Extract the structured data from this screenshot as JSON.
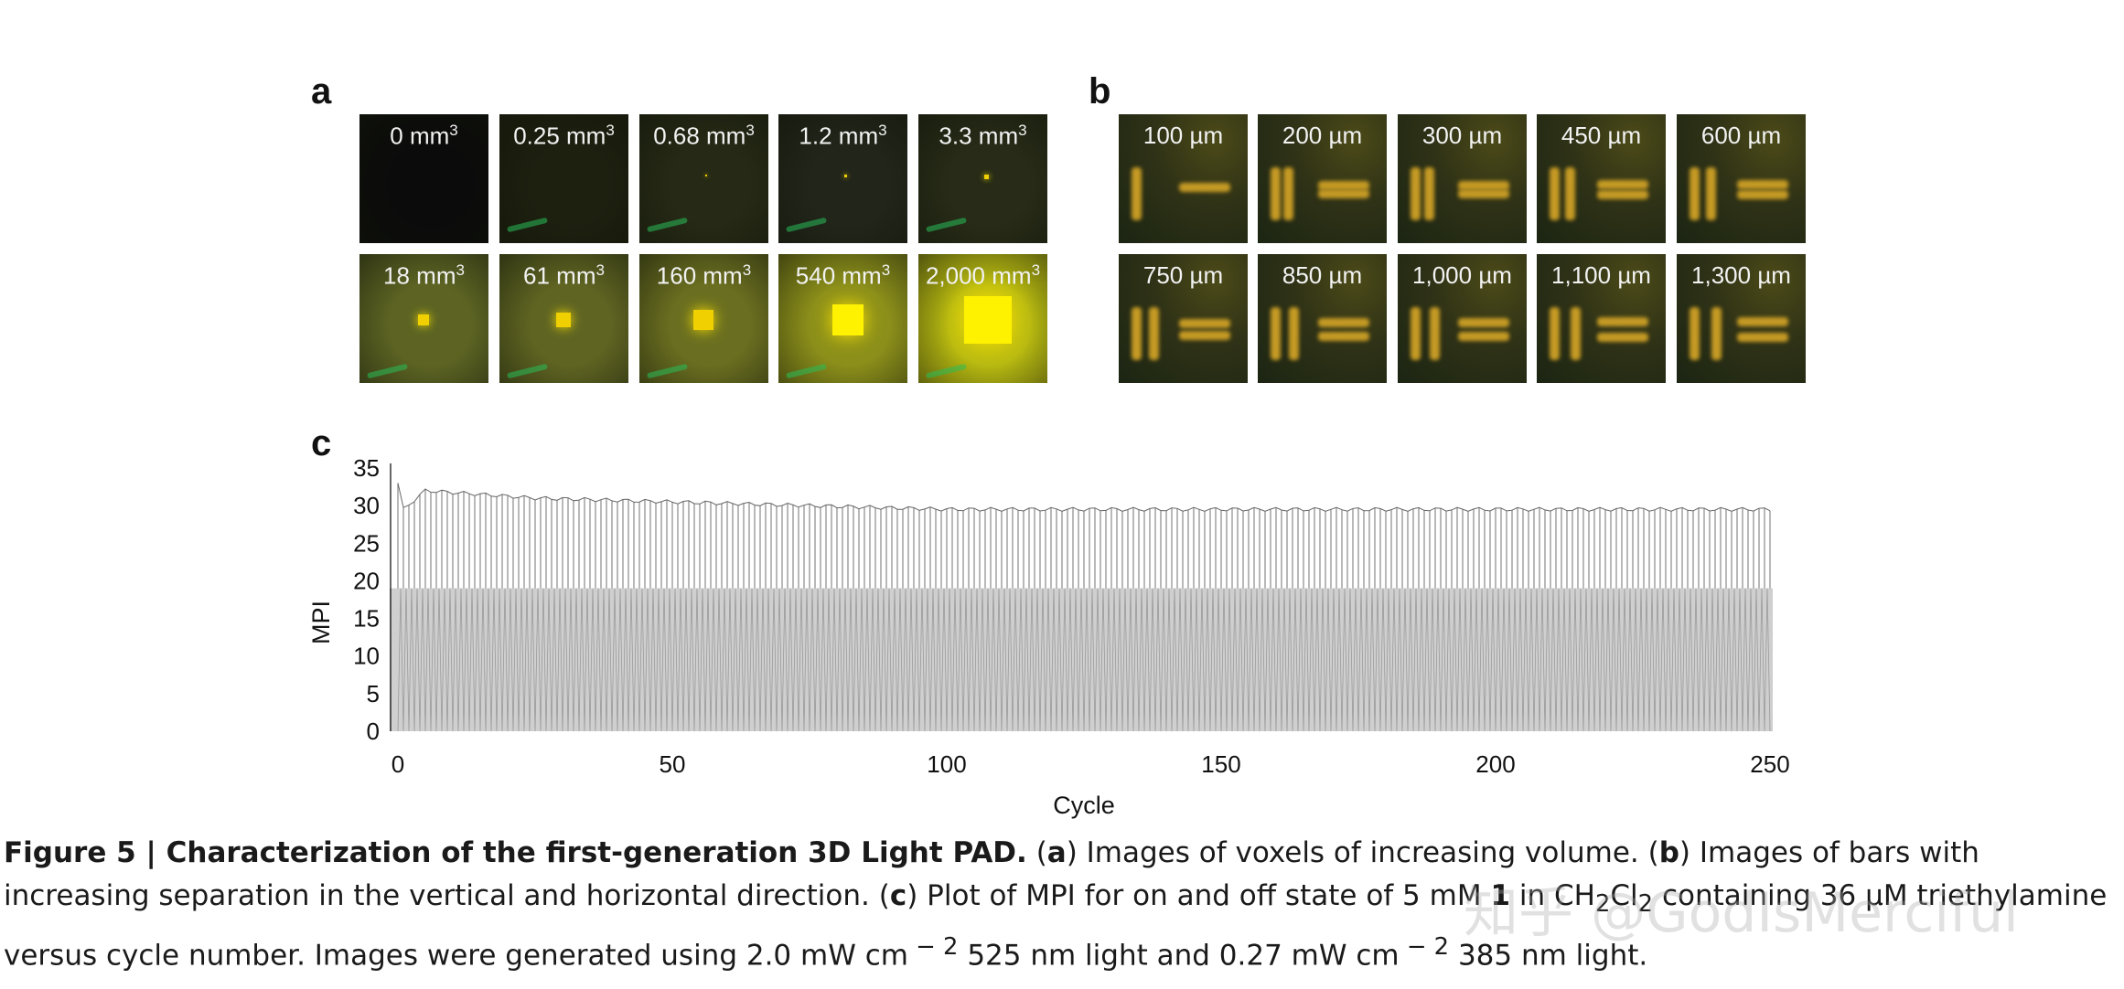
{
  "panels": {
    "a_letter": "a",
    "b_letter": "b",
    "c_letter": "c"
  },
  "panel_a": {
    "tiles": [
      {
        "value": "0 mm",
        "exp": "3"
      },
      {
        "value": "0.25 mm",
        "exp": "3"
      },
      {
        "value": "0.68 mm",
        "exp": "3"
      },
      {
        "value": "1.2 mm",
        "exp": "3"
      },
      {
        "value": "3.3 mm",
        "exp": "3"
      },
      {
        "value": "18 mm",
        "exp": "3"
      },
      {
        "value": "61 mm",
        "exp": "3"
      },
      {
        "value": "160 mm",
        "exp": "3"
      },
      {
        "value": "540 mm",
        "exp": "3"
      },
      {
        "value": "2,000 mm",
        "exp": "3"
      }
    ]
  },
  "panel_b": {
    "tiles": [
      "100 µm",
      "200 µm",
      "300 µm",
      "450 µm",
      "600 µm",
      "750 µm",
      "850 µm",
      "1,000 µm",
      "1,100 µm",
      "1,300 µm"
    ]
  },
  "chart_data": {
    "type": "line",
    "xlabel": "Cycle",
    "ylabel": "MPI",
    "xlim": [
      0,
      250
    ],
    "ylim": [
      0,
      35
    ],
    "xticks": [
      0,
      50,
      100,
      150,
      200,
      250
    ],
    "yticks": [
      0,
      5,
      10,
      15,
      20,
      25,
      30,
      35
    ],
    "series": [
      {
        "on_state_x": [
          0,
          1,
          5,
          25,
          50,
          100,
          150,
          200,
          250
        ],
        "on_state_y": [
          33,
          29.5,
          32,
          31,
          30.5,
          29.5,
          29.5,
          29.5,
          29.5
        ],
        "off_state_x": [
          0,
          250
        ],
        "off_state_y": [
          0,
          0
        ]
      }
    ],
    "grid": false
  },
  "caption": {
    "fig_label": "Figure 5 | Characterization of the first-generation 3D Light PAD.",
    "a_open": "(",
    "a_letter": "a",
    "a_text": ") Images of voxels of increasing volume. (",
    "b_letter": "b",
    "b_text": ") Images of bars with increasing separation in the vertical and horizontal direction. (",
    "c_letter": "c",
    "c_text": ") Plot of MPI for on and off state of 5 mM ",
    "compound": "1",
    "c_text2": " in CH",
    "sub1": "2",
    "c_text3": "Cl",
    "sub2": "2",
    "c_text4": " containing 36 µM triethylamine versus cycle number. Images were generated using 2.0 mW cm",
    "sup1": " − 2",
    "c_text5": " 525 nm light and 0.27 mW cm",
    "sup2": " − 2",
    "c_text6": " 385 nm light."
  },
  "watermark": "知乎 @GodIsMerciful"
}
